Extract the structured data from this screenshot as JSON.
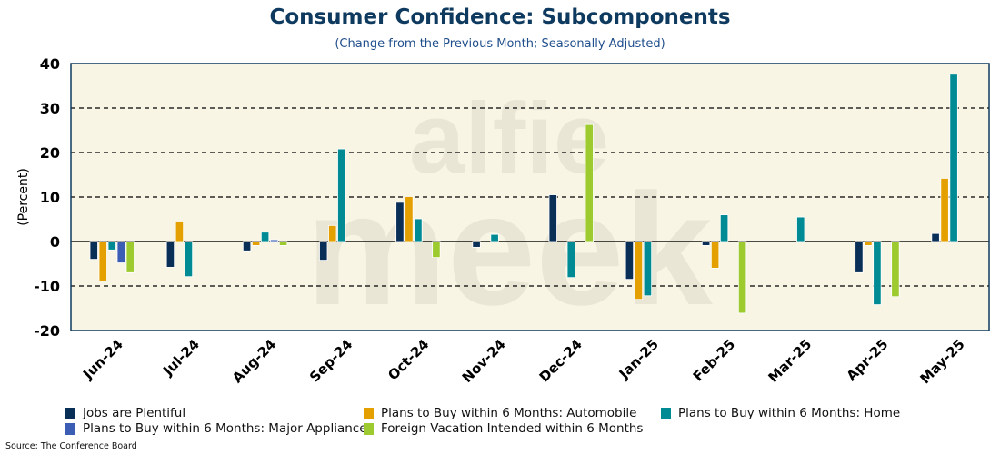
{
  "chart_data": {
    "type": "bar",
    "title": "Consumer Confidence: Subcomponents",
    "subtitle": "(Change from the Previous Month; Seasonally Adjusted)",
    "ylabel": "(Percent)",
    "xlabel": "",
    "ylim": [
      -20,
      40
    ],
    "yticks": [
      "40",
      "30",
      "20",
      "10",
      "0",
      "-10",
      "-20"
    ],
    "categories": [
      "Jun-24",
      "Jul-24",
      "Aug-24",
      "Sep-24",
      "Oct-24",
      "Nov-24",
      "Dec-24",
      "Jan-25",
      "Feb-25",
      "Mar-25",
      "Apr-25",
      "May-25"
    ],
    "series": [
      {
        "name": "Jobs are Plentiful",
        "color": "#0a2f57",
        "values": [
          -4.0,
          -5.8,
          -2.1,
          -4.2,
          8.8,
          -1.3,
          10.5,
          -8.5,
          -0.9,
          0,
          -7.0,
          1.8
        ]
      },
      {
        "name": "Plans to Buy within 6 Months: Automobile",
        "color": "#e3a000",
        "values": [
          -8.9,
          4.6,
          -0.9,
          3.6,
          10.1,
          0,
          0,
          -13.0,
          -6.0,
          0,
          -0.9,
          14.2
        ]
      },
      {
        "name": "Plans to Buy within 6 Months: Home",
        "color": "#008b94",
        "values": [
          -1.9,
          -7.9,
          2.1,
          20.8,
          5.1,
          1.6,
          -8.1,
          -12.2,
          6.0,
          5.5,
          -14.2,
          37.6
        ]
      },
      {
        "name": "Plans to Buy within 6 Months: Major Appliances",
        "color": "#3b5eb4",
        "values": [
          -4.8,
          0,
          0.4,
          0,
          0,
          0,
          0,
          0,
          0,
          0,
          0,
          0
        ]
      },
      {
        "name": "Foreign Vacation Intended within 6 Months",
        "color": "#9cca2f",
        "values": [
          -7.0,
          0,
          -0.9,
          0,
          -3.6,
          0,
          26.3,
          0,
          -16.1,
          0,
          -12.4,
          0
        ]
      }
    ],
    "grid": true,
    "legend_position": "bottom"
  },
  "source": "Source: The Conference Board",
  "watermark": "alfie meek"
}
